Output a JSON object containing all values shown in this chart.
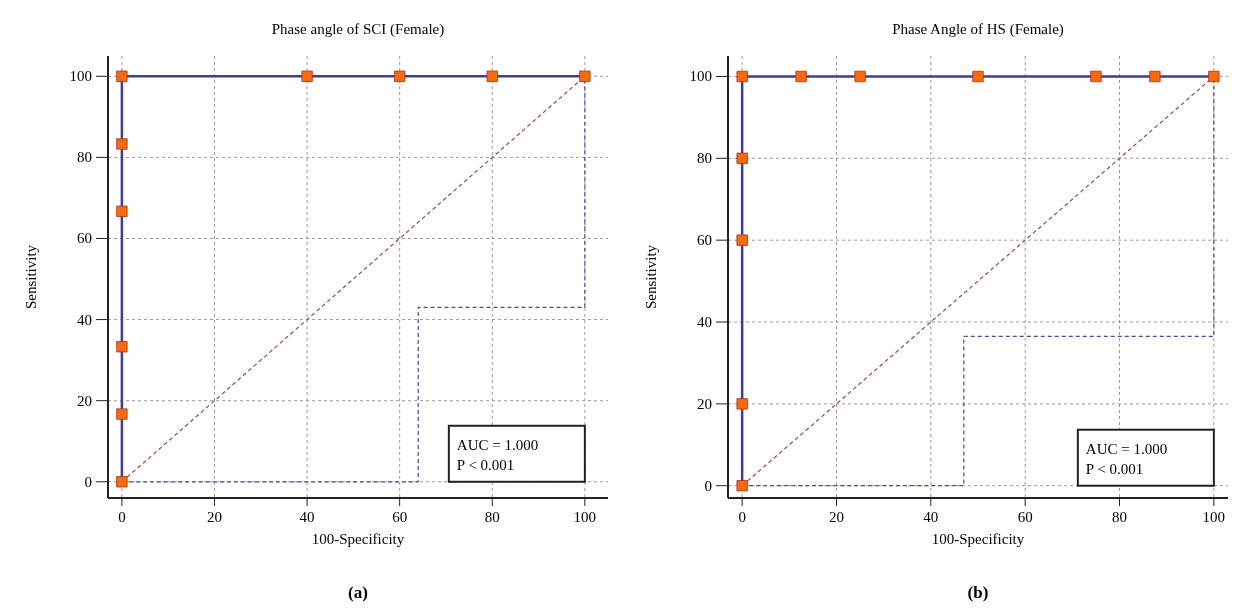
{
  "chart_data": [
    {
      "type": "line",
      "title": "Phase angle of SCI (Female)",
      "xlabel": "100-Specificity",
      "ylabel": "Sensitivity",
      "xlim": [
        -3,
        105
      ],
      "ylim": [
        -4,
        105
      ],
      "xticks": [
        0,
        20,
        40,
        60,
        80,
        100
      ],
      "yticks": [
        0,
        20,
        40,
        60,
        80,
        100
      ],
      "grid": true,
      "annotations": [
        "AUC = 1.000\nP < 0.001",
        "(a)"
      ],
      "series": [
        {
          "color": "#3c3ca8",
          "line_style": "solid",
          "marker": "square",
          "x": [
            0,
            0,
            0,
            0,
            0,
            0,
            40,
            60,
            80,
            100
          ],
          "values": [
            0,
            16.7,
            33.3,
            66.7,
            83.3,
            100,
            100,
            100,
            100,
            100
          ]
        },
        {
          "color": "#a04848",
          "line_style": "dashed",
          "x": [
            0,
            100
          ],
          "values": [
            0,
            100
          ]
        },
        {
          "color": "#4848b8",
          "line_style": "dashed",
          "x": [
            0,
            64,
            64,
            100,
            100
          ],
          "values": [
            0,
            0,
            43,
            43,
            100
          ]
        }
      ]
    },
    {
      "type": "line",
      "title": "Phase Angle of HS (Female)",
      "xlabel": "100-Specificity",
      "ylabel": "Sensitivity",
      "xlim": [
        -3,
        103
      ],
      "ylim": [
        -3,
        105
      ],
      "xticks": [
        0,
        20,
        40,
        60,
        80,
        100
      ],
      "yticks": [
        0,
        20,
        40,
        60,
        80,
        100
      ],
      "grid": true,
      "annotations": [
        "AUC = 1.000\nP < 0.001",
        "(b)"
      ],
      "series": [
        {
          "color": "#3c3ca8",
          "line_style": "solid",
          "marker": "square",
          "x": [
            0,
            0,
            0,
            0,
            0,
            12.5,
            25,
            50,
            75,
            87.5,
            100
          ],
          "values": [
            0,
            20,
            60,
            80,
            100,
            100,
            100,
            100,
            100,
            100,
            100
          ]
        },
        {
          "color": "#a04848",
          "line_style": "dashed",
          "x": [
            0,
            100
          ],
          "values": [
            0,
            100
          ]
        },
        {
          "color": "#4848b8",
          "line_style": "dashed",
          "x": [
            0,
            47,
            47,
            100,
            100
          ],
          "values": [
            0,
            0,
            36.5,
            36.5,
            100
          ]
        }
      ]
    }
  ]
}
